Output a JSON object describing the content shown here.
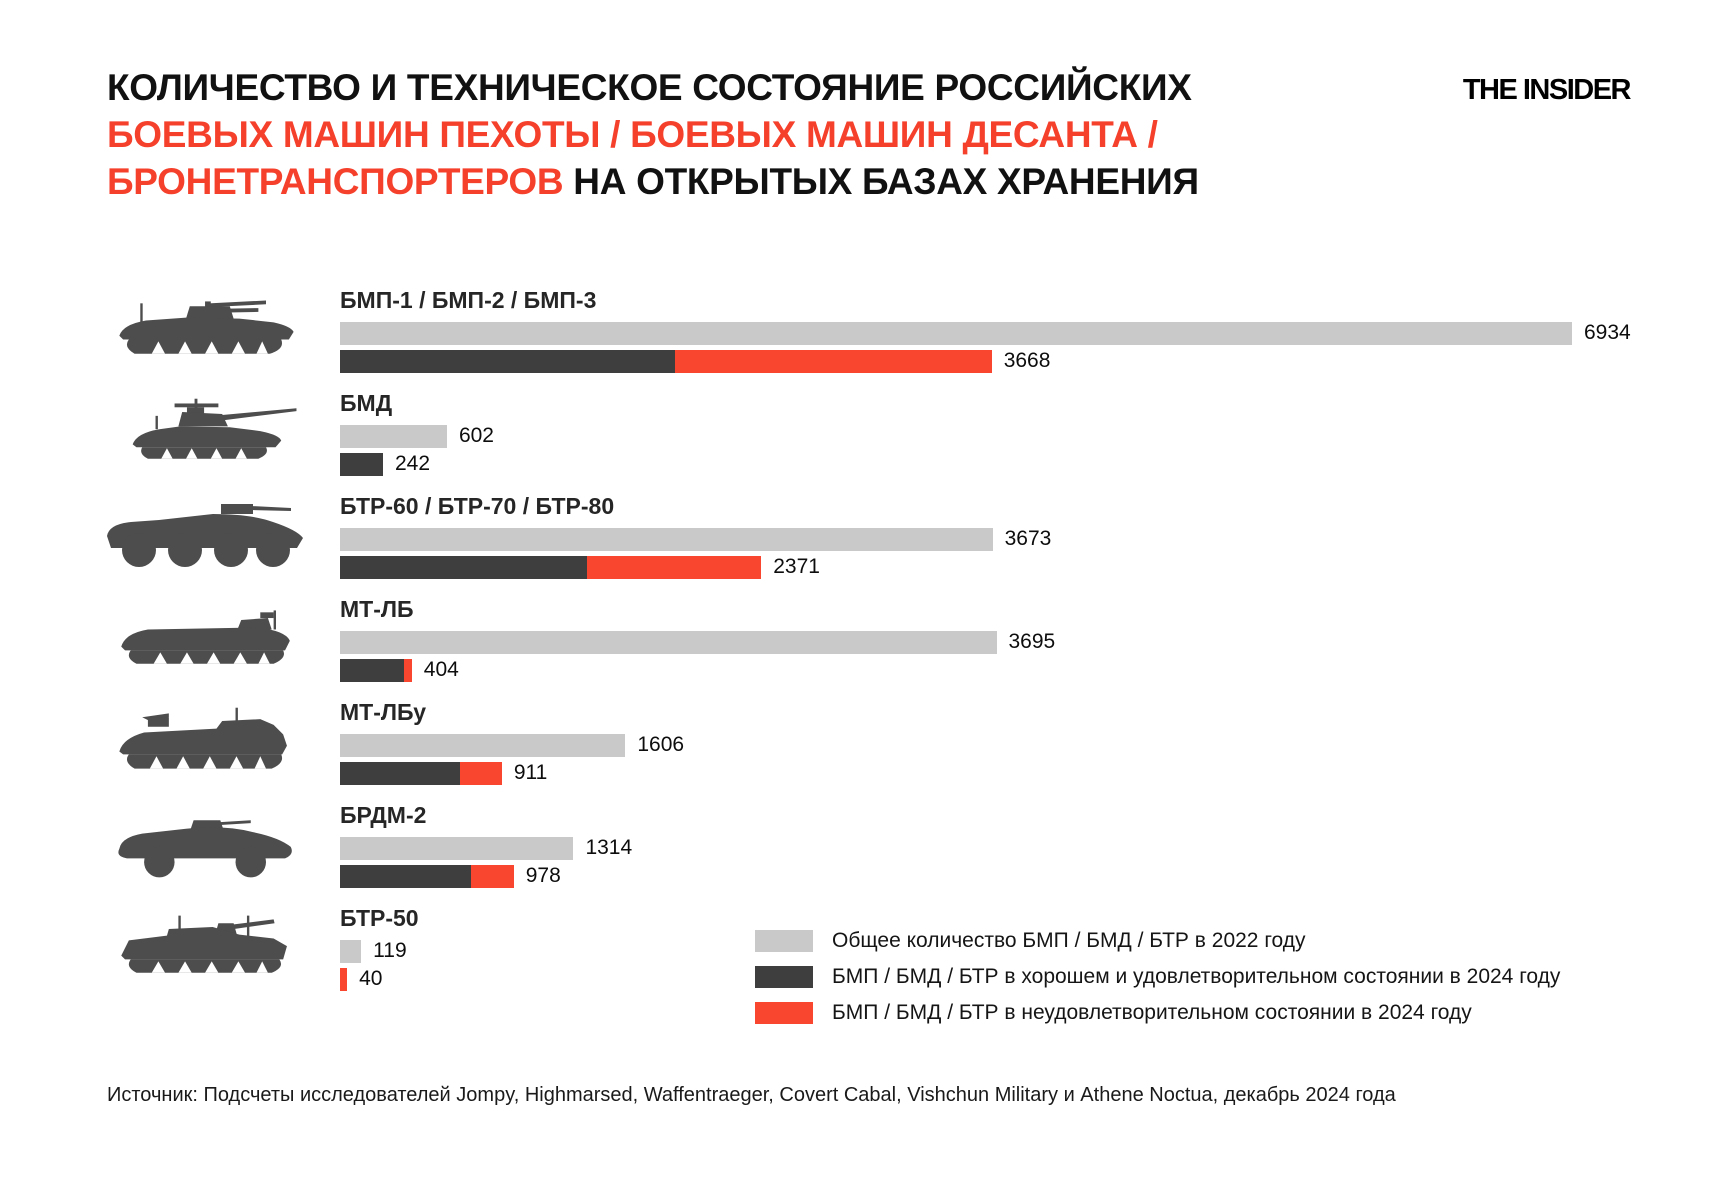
{
  "logo": "THE INSIDER",
  "title": {
    "line1_black": "КОЛИЧЕСТВО И ТЕХНИЧЕСКОЕ СОСТОЯНИЕ РОССИЙСКИХ",
    "line2_red": "БОЕВЫХ МАШИН ПЕХОТЫ / БОЕВЫХ МАШИН ДЕСАНТА /",
    "line3_red": "БРОНЕТРАНСПОРТЕРОВ",
    "line3_black": " НА ОТКРЫТЫХ БАЗАХ ХРАНЕНИЯ"
  },
  "colors": {
    "total_2022": "#c9c9c9",
    "good_2024": "#3e3e3e",
    "bad_2024": "#f9472f",
    "title_accent": "#f5402c",
    "icon": "#4d4d4d"
  },
  "chart_data": {
    "type": "bar",
    "orientation": "horizontal",
    "grid": false,
    "legend_position": "bottom-right",
    "max_value": 6934,
    "series": [
      {
        "name": "Общее количество БМП / БМД / БТР в 2022 году",
        "color": "#c9c9c9"
      },
      {
        "name": "БМП / БМД / БТР в хорошем и удовлетворительном состоянии в 2024 году",
        "color": "#3e3e3e"
      },
      {
        "name": "БМП / БМД / БТР в неудовлетворительном состоянии в 2024 году",
        "color": "#f9472f"
      }
    ],
    "rows": [
      {
        "label": "БМП-1 / БМП-2 / БМП-3",
        "icon": "bmp",
        "total_2022": 6934,
        "condition_2024_total": 3668,
        "good_2024_est": 1885,
        "bad_2024_est": 1783
      },
      {
        "label": "БМД",
        "icon": "bmd",
        "total_2022": 602,
        "condition_2024_total": 242,
        "good_2024_est": 242,
        "bad_2024_est": 0
      },
      {
        "label": "БТР-60 / БТР-70 / БТР-80",
        "icon": "btr80",
        "total_2022": 3673,
        "condition_2024_total": 2371,
        "good_2024_est": 1390,
        "bad_2024_est": 981
      },
      {
        "label": "МТ-ЛБ",
        "icon": "mtlb",
        "total_2022": 3695,
        "condition_2024_total": 404,
        "good_2024_est": 359,
        "bad_2024_est": 45
      },
      {
        "label": "МТ-ЛБу",
        "icon": "mtlbu",
        "total_2022": 1606,
        "condition_2024_total": 911,
        "good_2024_est": 675,
        "bad_2024_est": 236
      },
      {
        "label": "БРДМ-2",
        "icon": "brdm",
        "total_2022": 1314,
        "condition_2024_total": 978,
        "good_2024_est": 740,
        "bad_2024_est": 238
      },
      {
        "label": "БТР-50",
        "icon": "btr50",
        "total_2022": 119,
        "condition_2024_total": 40,
        "good_2024_est": 0,
        "bad_2024_est": 40
      }
    ]
  },
  "legend": [
    {
      "label": "Общее количество БМП / БМД / БТР в 2022 году"
    },
    {
      "label": "БМП / БМД / БТР в хорошем и удовлетворительном состоянии в 2024 году"
    },
    {
      "label": "БМП / БМД / БТР в неудовлетворительном состоянии в 2024 году"
    }
  ],
  "source": "Источник: Подсчеты исследователей Jompy, Highmarsed, Waffentraeger, Covert Cabal, Vishchun Military и Athene Noctua, декабрь 2024 года"
}
